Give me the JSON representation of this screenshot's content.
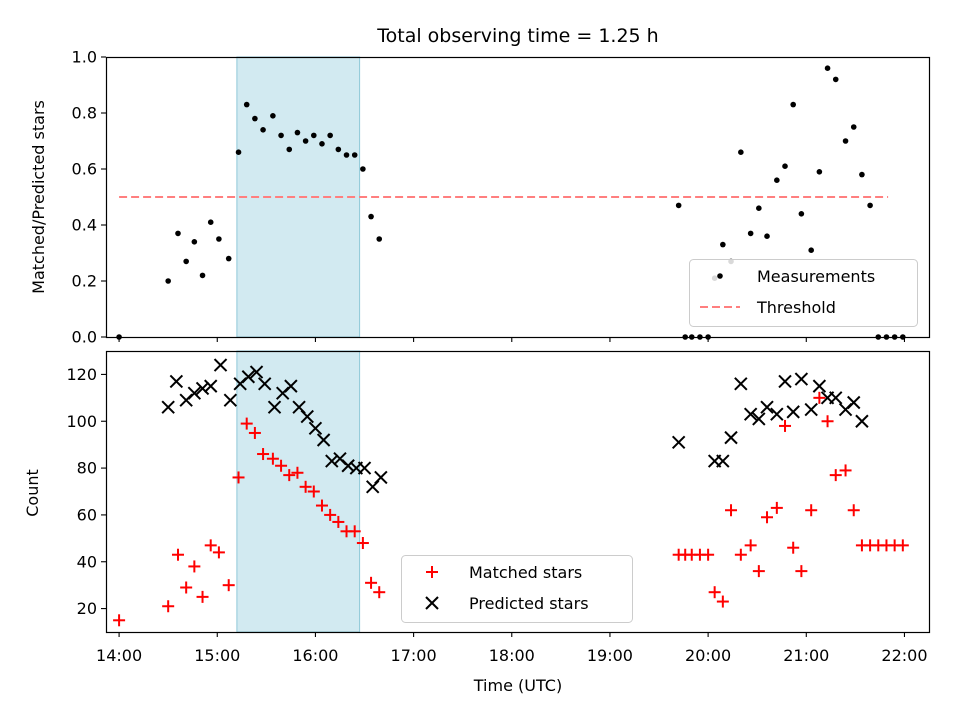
{
  "chart_data": [
    {
      "type": "scatter",
      "title": "Total observing time = 1.25 h",
      "xlabel": "",
      "ylabel": "Matched/Predicted stars",
      "xlim": [
        "13:52",
        "22:15"
      ],
      "ylim": [
        0,
        1.0
      ],
      "yticks": [
        "0.0",
        "0.2",
        "0.4",
        "0.6",
        "0.8",
        "1.0"
      ],
      "xticks_shown": false,
      "grid": false,
      "legend": "lower-right",
      "shaded_span": [
        "15:12",
        "16:27"
      ],
      "shade_color": "#add8e6",
      "series": [
        {
          "name": "Measurements",
          "marker": "dot",
          "color": "#000000",
          "points": [
            [
              "14:00",
              0.0
            ],
            [
              "14:30",
              0.2
            ],
            [
              "14:36",
              0.37
            ],
            [
              "14:41",
              0.27
            ],
            [
              "14:46",
              0.34
            ],
            [
              "14:51",
              0.22
            ],
            [
              "14:56",
              0.41
            ],
            [
              "15:01",
              0.35
            ],
            [
              "15:07",
              0.28
            ],
            [
              "15:13",
              0.66
            ],
            [
              "15:18",
              0.83
            ],
            [
              "15:23",
              0.78
            ],
            [
              "15:28",
              0.74
            ],
            [
              "15:34",
              0.79
            ],
            [
              "15:39",
              0.72
            ],
            [
              "15:44",
              0.67
            ],
            [
              "15:49",
              0.73
            ],
            [
              "15:54",
              0.7
            ],
            [
              "15:59",
              0.72
            ],
            [
              "16:04",
              0.69
            ],
            [
              "16:09",
              0.72
            ],
            [
              "16:14",
              0.67
            ],
            [
              "16:19",
              0.65
            ],
            [
              "16:24",
              0.65
            ],
            [
              "16:29",
              0.6
            ],
            [
              "16:34",
              0.43
            ],
            [
              "16:39",
              0.35
            ],
            [
              "19:42",
              0.47
            ],
            [
              "19:46",
              0.0
            ],
            [
              "19:50",
              0.0
            ],
            [
              "19:55",
              0.0
            ],
            [
              "20:00",
              0.0
            ],
            [
              "20:04",
              0.21
            ],
            [
              "20:09",
              0.33
            ],
            [
              "20:14",
              0.27
            ],
            [
              "20:20",
              0.66
            ],
            [
              "20:26",
              0.37
            ],
            [
              "20:31",
              0.46
            ],
            [
              "20:36",
              0.36
            ],
            [
              "20:42",
              0.56
            ],
            [
              "20:47",
              0.61
            ],
            [
              "20:52",
              0.83
            ],
            [
              "20:57",
              0.44
            ],
            [
              "21:03",
              0.31
            ],
            [
              "21:08",
              0.59
            ],
            [
              "21:13",
              0.96
            ],
            [
              "21:18",
              0.92
            ],
            [
              "21:24",
              0.7
            ],
            [
              "21:29",
              0.75
            ],
            [
              "21:34",
              0.58
            ],
            [
              "21:39",
              0.47
            ],
            [
              "21:44",
              0.0
            ],
            [
              "21:49",
              0.0
            ],
            [
              "21:54",
              0.0
            ],
            [
              "21:59",
              0.0
            ]
          ]
        },
        {
          "name": "Threshold",
          "marker": "dashed-line",
          "color": "#ff7f7f",
          "points": [
            [
              "14:00",
              0.5
            ],
            [
              "21:50",
              0.5
            ]
          ]
        }
      ]
    },
    {
      "type": "scatter",
      "title": "",
      "xlabel": "Time (UTC)",
      "ylabel": "Count",
      "xlim": [
        "13:52",
        "22:15"
      ],
      "ylim": [
        10,
        130
      ],
      "xticks": [
        "14:00",
        "15:00",
        "16:00",
        "17:00",
        "18:00",
        "19:00",
        "20:00",
        "21:00",
        "22:00"
      ],
      "yticks": [
        "20",
        "40",
        "60",
        "80",
        "100",
        "120"
      ],
      "grid": false,
      "legend": "lower-center",
      "shaded_span": [
        "15:12",
        "16:27"
      ],
      "shade_color": "#add8e6",
      "series": [
        {
          "name": "Matched stars",
          "marker": "plus",
          "color": "#ff0000",
          "points": [
            [
              "14:00",
              15
            ],
            [
              "14:30",
              21
            ],
            [
              "14:36",
              43
            ],
            [
              "14:41",
              29
            ],
            [
              "14:46",
              38
            ],
            [
              "14:51",
              25
            ],
            [
              "14:56",
              47
            ],
            [
              "15:01",
              44
            ],
            [
              "15:07",
              30
            ],
            [
              "15:13",
              76
            ],
            [
              "15:18",
              99
            ],
            [
              "15:23",
              95
            ],
            [
              "15:28",
              86
            ],
            [
              "15:34",
              84
            ],
            [
              "15:39",
              81
            ],
            [
              "15:44",
              77
            ],
            [
              "15:49",
              78
            ],
            [
              "15:54",
              72
            ],
            [
              "15:59",
              70
            ],
            [
              "16:04",
              64
            ],
            [
              "16:09",
              60
            ],
            [
              "16:14",
              57
            ],
            [
              "16:19",
              53
            ],
            [
              "16:24",
              53
            ],
            [
              "16:29",
              48
            ],
            [
              "16:34",
              31
            ],
            [
              "16:39",
              27
            ],
            [
              "19:42",
              43
            ],
            [
              "19:46",
              43
            ],
            [
              "19:50",
              43
            ],
            [
              "19:55",
              43
            ],
            [
              "20:00",
              43
            ],
            [
              "20:04",
              27
            ],
            [
              "20:09",
              23
            ],
            [
              "20:14",
              62
            ],
            [
              "20:20",
              43
            ],
            [
              "20:26",
              47
            ],
            [
              "20:31",
              36
            ],
            [
              "20:36",
              59
            ],
            [
              "20:42",
              63
            ],
            [
              "20:47",
              98
            ],
            [
              "20:52",
              46
            ],
            [
              "20:57",
              36
            ],
            [
              "21:03",
              62
            ],
            [
              "21:08",
              110
            ],
            [
              "21:13",
              100
            ],
            [
              "21:18",
              77
            ],
            [
              "21:24",
              79
            ],
            [
              "21:29",
              62
            ],
            [
              "21:34",
              47
            ],
            [
              "21:39",
              47
            ],
            [
              "21:44",
              47
            ],
            [
              "21:49",
              47
            ],
            [
              "21:54",
              47
            ],
            [
              "21:59",
              47
            ]
          ]
        },
        {
          "name": "Predicted stars",
          "marker": "x",
          "color": "#000000",
          "points": [
            [
              "14:30",
              106
            ],
            [
              "14:35",
              117
            ],
            [
              "14:41",
              109
            ],
            [
              "14:46",
              112
            ],
            [
              "14:51",
              114
            ],
            [
              "14:56",
              115
            ],
            [
              "15:02",
              124
            ],
            [
              "15:08",
              109
            ],
            [
              "15:14",
              116
            ],
            [
              "15:19",
              119
            ],
            [
              "15:24",
              121
            ],
            [
              "15:29",
              116
            ],
            [
              "15:35",
              106
            ],
            [
              "15:40",
              112
            ],
            [
              "15:45",
              115
            ],
            [
              "15:50",
              106
            ],
            [
              "15:55",
              102
            ],
            [
              "16:00",
              97
            ],
            [
              "16:05",
              92
            ],
            [
              "16:10",
              83
            ],
            [
              "16:15",
              84
            ],
            [
              "16:20",
              81
            ],
            [
              "16:25",
              80
            ],
            [
              "16:30",
              80
            ],
            [
              "16:35",
              72
            ],
            [
              "16:40",
              76
            ],
            [
              "19:42",
              91
            ],
            [
              "20:04",
              83
            ],
            [
              "20:09",
              83
            ],
            [
              "20:14",
              93
            ],
            [
              "20:20",
              116
            ],
            [
              "20:26",
              103
            ],
            [
              "20:31",
              101
            ],
            [
              "20:36",
              106
            ],
            [
              "20:42",
              103
            ],
            [
              "20:47",
              117
            ],
            [
              "20:52",
              104
            ],
            [
              "20:57",
              118
            ],
            [
              "21:03",
              105
            ],
            [
              "21:08",
              115
            ],
            [
              "21:13",
              110
            ],
            [
              "21:18",
              110
            ],
            [
              "21:24",
              105
            ],
            [
              "21:29",
              108
            ],
            [
              "21:34",
              100
            ]
          ]
        }
      ]
    }
  ]
}
